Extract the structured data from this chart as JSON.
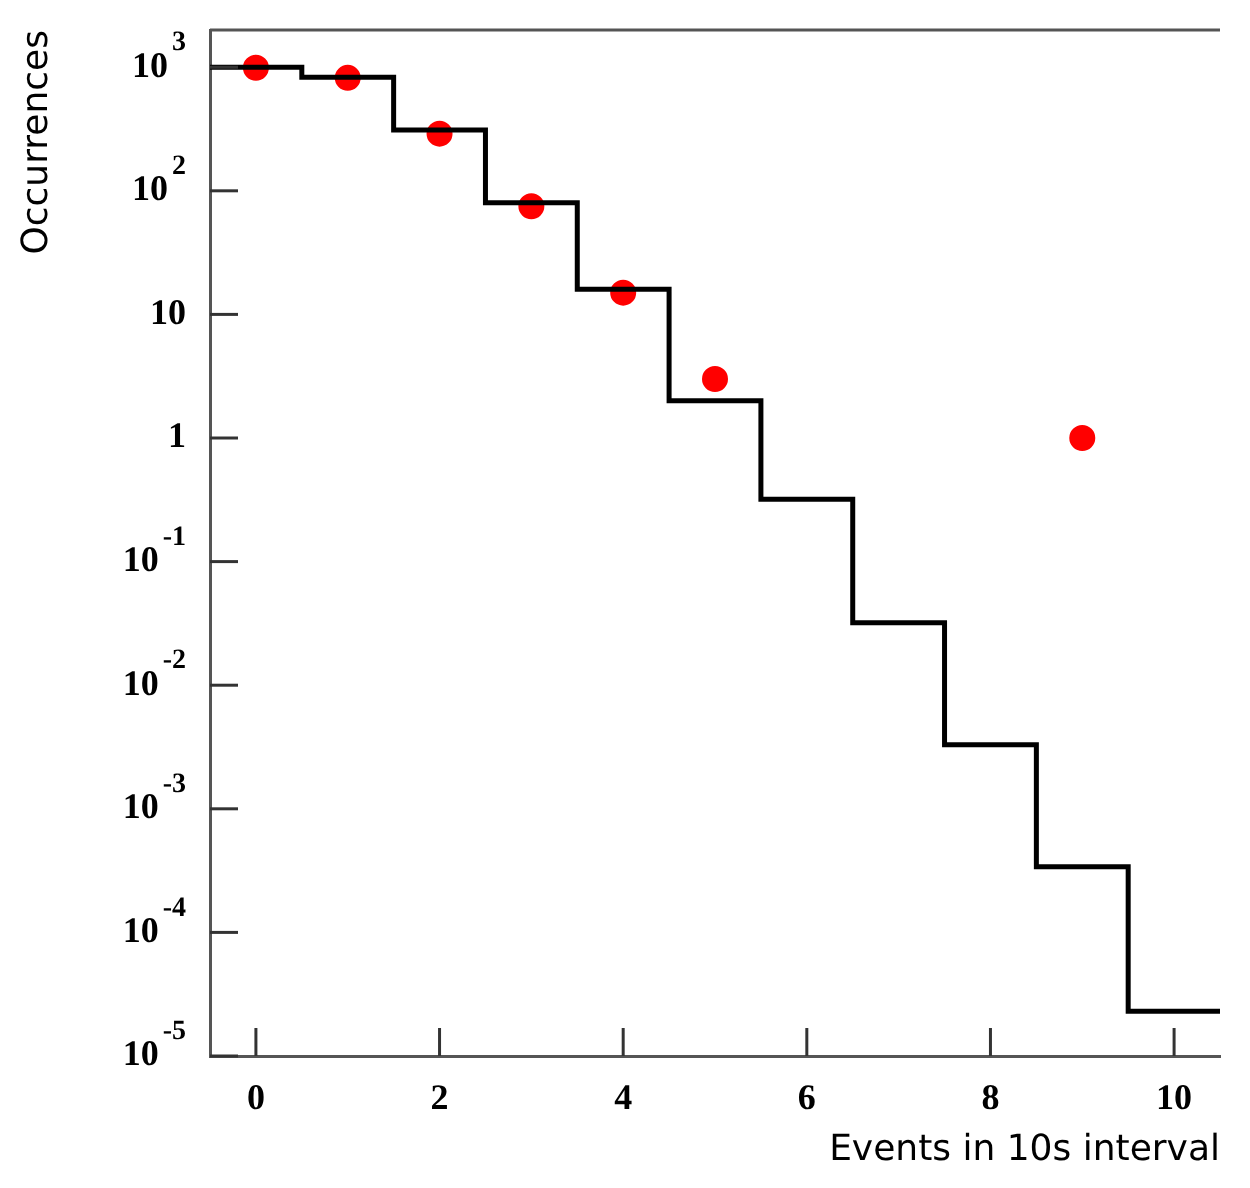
{
  "chart_data": {
    "type": "histogram",
    "xlabel": "Events in 10s interval",
    "ylabel": "Occurrences",
    "xlim": [
      -0.5,
      10.5
    ],
    "xticks": [
      0,
      2,
      4,
      6,
      8,
      10
    ],
    "ylim": [
      1e-05,
      2000
    ],
    "log": "y",
    "yticks": [
      {
        "value": 1e-05,
        "label": "10$^{-5}$"
      },
      {
        "value": 0.0001,
        "label": "10$^{-4}$"
      },
      {
        "value": 0.001,
        "label": "10$^{-3}$"
      },
      {
        "value": 0.01,
        "label": "10$^{-2}$"
      },
      {
        "value": 0.1,
        "label": "10$^{-1}$"
      },
      1,
      10,
      {
        "value": 100,
        "label": "10$^{2}$"
      },
      {
        "value": 1000,
        "label": "10$^{3}$"
      }
    ],
    "grid": false,
    "legend": false,
    "series": [
      {
        "color": "#000000",
        "bins": [
          -0.5,
          0.5,
          1.5,
          2.5,
          3.5,
          4.5,
          5.5,
          6.5,
          7.5,
          8.5,
          9.5,
          10.5
        ],
        "values": [
          1000,
          830,
          310,
          80,
          16,
          2,
          0.32,
          0.032,
          0.0033,
          0.00034,
          2.3e-05
        ]
      },
      {
        "type": "scatter",
        "color": "#ff0000",
        "marker": "circle",
        "x": [
          0,
          1,
          2,
          3,
          4,
          5,
          9
        ],
        "values": [
          990,
          820,
          290,
          75,
          15,
          3,
          1
        ]
      }
    ]
  }
}
